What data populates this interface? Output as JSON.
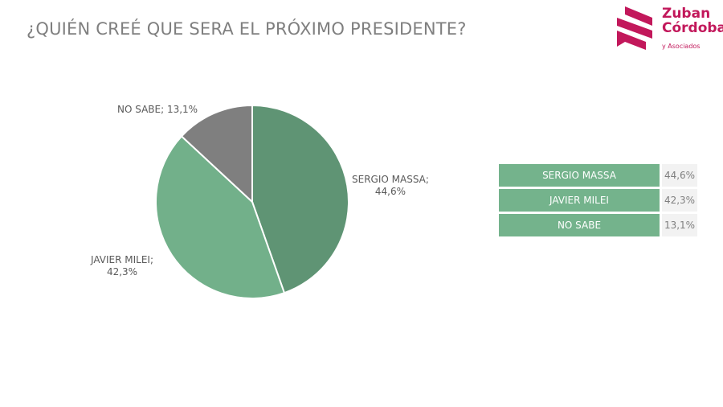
{
  "title": "¿QUIÉN CREÉ QUE SERA EL PRÓXIMO PRESIDENTE?",
  "logo": {
    "line1": "Zuban",
    "line2": "Córdoba",
    "line3": "y Asociados",
    "color": "#c2185b"
  },
  "chart_data": {
    "type": "pie",
    "title": "¿QUIÉN CREÉ QUE SERA EL PRÓXIMO PRESIDENTE?",
    "slices": [
      {
        "label": "SERGIO MASSA",
        "value": 44.6,
        "display": "44,6%",
        "color": "#5f9474"
      },
      {
        "label": "JAVIER MILEI",
        "value": 42.3,
        "display": "42,3%",
        "color": "#72b08a"
      },
      {
        "label": "NO SABE",
        "value": 13.1,
        "display": "13,1%",
        "color": "#7f7f7f"
      }
    ],
    "data_labels": [
      "SERGIO MASSA;",
      "44,6%",
      "JAVIER MILEI;",
      "42,3%",
      "NO SABE; 13,1%"
    ]
  },
  "table": {
    "rows": [
      {
        "name": "SERGIO MASSA",
        "value": "44,6%"
      },
      {
        "name": "JAVIER MILEI",
        "value": "42,3%"
      },
      {
        "name": "NO SABE",
        "value": "13,1%"
      }
    ]
  }
}
